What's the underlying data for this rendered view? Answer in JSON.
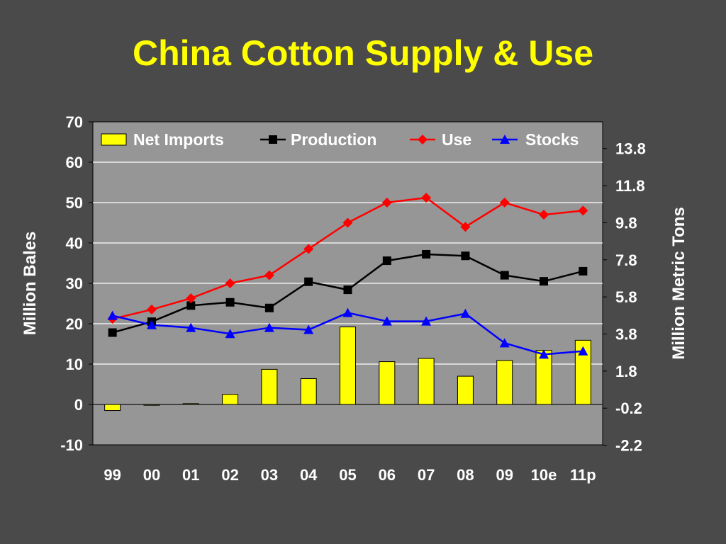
{
  "page": {
    "title": "China Cotton Supply & Use"
  },
  "chart_data": {
    "type": "bar",
    "title": "China Cotton Supply & Use",
    "categories": [
      "99",
      "00",
      "01",
      "02",
      "03",
      "04",
      "05",
      "06",
      "07",
      "08",
      "09",
      "10e",
      "11p"
    ],
    "ylabel": "Million Bales",
    "y2label": "Million Metric Tons",
    "ylim": [
      -10,
      70
    ],
    "yticks": [
      "70",
      "60",
      "50",
      "40",
      "30",
      "20",
      "10",
      "0",
      "-10"
    ],
    "y2ticks": [
      "13.8",
      "11.8",
      "9.8",
      "7.8",
      "5.8",
      "3.8",
      "1.8",
      "-0.2",
      "-2.2"
    ],
    "y2_tick_values_mmt": [
      13.8,
      11.8,
      9.8,
      7.8,
      5.8,
      3.8,
      1.8,
      -0.2,
      -2.2
    ],
    "grid": true,
    "legend_position": "top",
    "series": [
      {
        "name": "Net Imports",
        "type": "bar",
        "color": "#ffff00",
        "values": [
          -1.5,
          -0.2,
          0.2,
          2.5,
          8.7,
          6.4,
          19.2,
          10.6,
          11.4,
          7.0,
          10.9,
          13.4,
          15.9
        ]
      },
      {
        "name": "Production",
        "type": "line",
        "marker": "square",
        "color": "#000000",
        "values": [
          17.8,
          20.5,
          24.5,
          25.3,
          23.9,
          30.4,
          28.4,
          35.6,
          37.2,
          36.8,
          32.0,
          30.5,
          33.0
        ]
      },
      {
        "name": "Use",
        "type": "line",
        "marker": "diamond",
        "color": "#ff0000",
        "values": [
          21.2,
          23.5,
          26.3,
          30.0,
          32.0,
          38.5,
          45.0,
          50.0,
          51.2,
          44.0,
          50.0,
          47.0,
          48.0
        ]
      },
      {
        "name": "Stocks",
        "type": "line",
        "marker": "triangle",
        "color": "#0000ff",
        "values": [
          22.0,
          19.7,
          19.0,
          17.5,
          19.0,
          18.5,
          22.7,
          20.6,
          20.6,
          22.5,
          15.2,
          12.4,
          13.2
        ]
      }
    ]
  }
}
